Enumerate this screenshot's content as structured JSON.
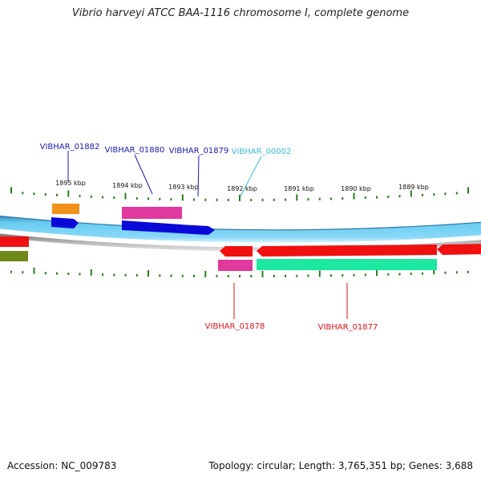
{
  "header": {
    "title": "Vibrio harveyi ATCC BAA-1116 chromosome I, complete genome"
  },
  "footer": {
    "accession": "Accession: NC_009783",
    "summary": "Topology: circular; Length: 3,765,351 bp; Genes: 3,688"
  },
  "map": {
    "scale_labels": [
      "1895 kbp",
      "1894 kbp",
      "1893 kbp",
      "1892 kbp",
      "1891 kbp",
      "1890 kbp",
      "1889 kbp"
    ],
    "gene_labels_top": [
      {
        "text": "VIBHAR_01882",
        "color": "#1a1aa8"
      },
      {
        "text": "VIBHAR_01880",
        "color": "#1a1aa8"
      },
      {
        "text": "VIBHAR_01879",
        "color": "#1a1aa8"
      },
      {
        "text": "VIBHAR_00002",
        "color": "#3cbad8"
      }
    ],
    "gene_labels_bottom": [
      {
        "text": "VIBHAR_01878",
        "color": "#d8141c"
      },
      {
        "text": "VIBHAR_01877",
        "color": "#d8141c"
      }
    ],
    "colors": {
      "forward_cds": "#0a0ad8",
      "reverse_cds": "#f01010",
      "rna_pink": "#e0389c",
      "orange": "#f09018",
      "green_feature": "#1ce8a0",
      "olive": "#708818",
      "backbone_light": "#66ccf0",
      "backbone_dark": "#3a88b8",
      "tick": "#2a7a20"
    }
  }
}
